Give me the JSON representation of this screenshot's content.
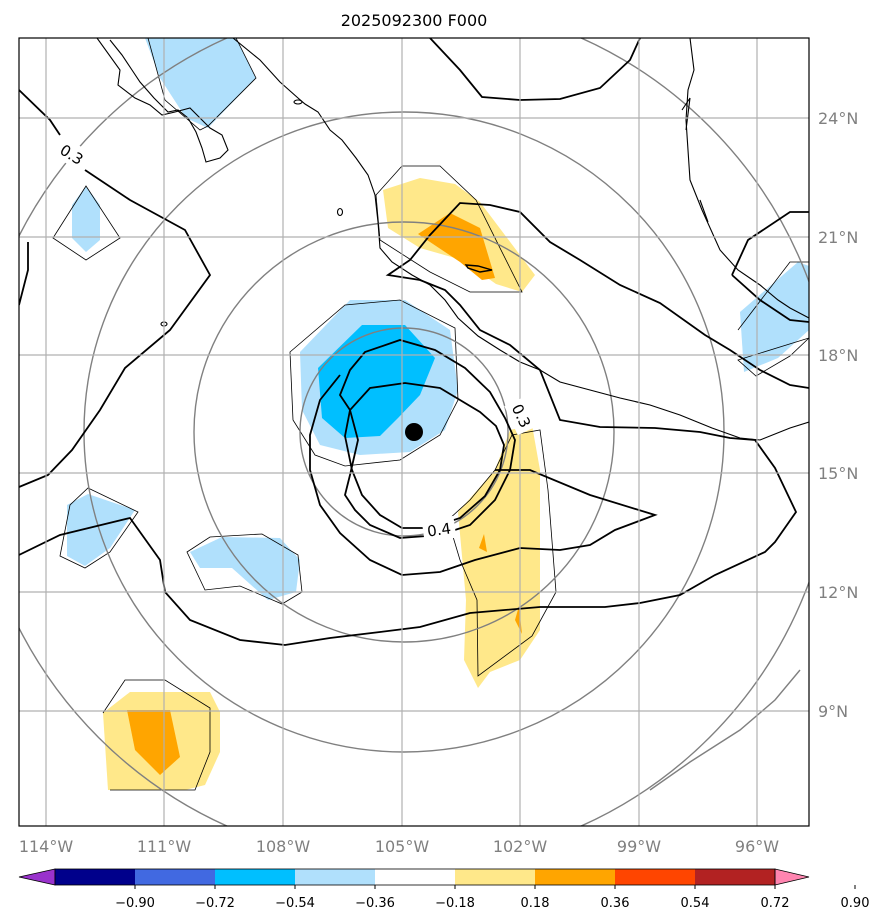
{
  "title": "2025092300 F000",
  "longitude_labels": [
    "114°W",
    "111°W",
    "108°W",
    "105°W",
    "102°W",
    "99°W",
    "96°W"
  ],
  "latitude_labels": [
    "24°N",
    "21°N",
    "18°N",
    "15°N",
    "12°N",
    "9°N"
  ],
  "longitudes": [
    -114,
    -111,
    -108,
    -105,
    -102,
    -99,
    -96
  ],
  "latitudes": [
    24,
    21,
    18,
    15,
    12,
    9
  ],
  "extent": {
    "lon": [
      -114.7,
      -94.7
    ],
    "lat": [
      6.0,
      26.0
    ]
  },
  "contour_labels": [
    "0.3",
    "0.3",
    "0.4"
  ],
  "storm_center": {
    "lon": -104.7,
    "lat": 16.1
  },
  "colorbar": {
    "tick_labels": [
      "−0.90",
      "−0.72",
      "−0.54",
      "−0.36",
      "−0.18",
      "0.18",
      "0.36",
      "0.54",
      "0.72",
      "0.90"
    ],
    "colors": [
      "#9932cc",
      "#00008b",
      "#4169e1",
      "#00bfff",
      "#b0e0fc",
      "#ffffff",
      "#ffe88a",
      "#ffa500",
      "#ff4500",
      "#b22222",
      "#ff85b0"
    ]
  },
  "colors": {
    "light_blue": "#b0e0fc",
    "blue": "#00bfff",
    "light_yellow": "#ffe88a",
    "orange": "#ffa500",
    "grid": "#b0b0b0",
    "range_rings": "#808080"
  }
}
